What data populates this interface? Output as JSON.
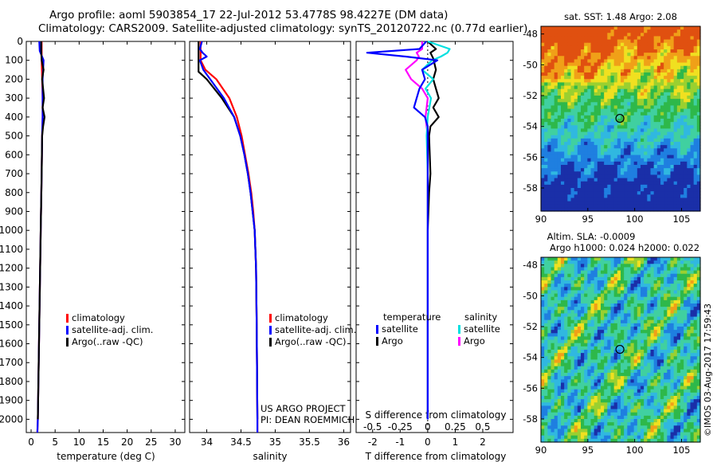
{
  "header": {
    "line1": "Argo profile: aoml 5903854_17 22-Jul-2012 53.4778S 98.4227E (DM data)",
    "line2": "Climatology: CARS2009. Satellite-adjusted climatology: synTS_20120722.nc (0.77d earlier)"
  },
  "project": {
    "line1": "US ARGO PROJECT",
    "line2": "PI: DEAN ROEMMICH"
  },
  "stamp": "©IMOS 03-Aug-2017 17:59:43",
  "colors": {
    "climatology": "#ff0000",
    "satellite": "#0000ff",
    "argo": "#000000",
    "sal_sat": "#00e0e0",
    "sal_argo": "#ff00ff"
  },
  "chart_data": [
    {
      "type": "line",
      "name": "temperature-profile",
      "xlabel": "temperature (deg C)",
      "xlim": [
        -1,
        32
      ],
      "xticks": [
        0,
        5,
        10,
        15,
        20,
        25,
        30
      ],
      "ylim": [
        0,
        2070
      ],
      "yticks": [
        0,
        100,
        200,
        300,
        400,
        500,
        600,
        700,
        800,
        900,
        1000,
        1100,
        1200,
        1300,
        1400,
        1500,
        1600,
        1700,
        1800,
        1900,
        2000
      ],
      "legend": [
        "climatology",
        "satellite-adj. clim.",
        "Argo(..raw -QC)"
      ],
      "series": [
        {
          "name": "climatology",
          "depth": [
            0,
            50,
            100,
            200,
            300,
            400,
            500,
            700,
            1000,
            1500,
            2000,
            2070
          ],
          "values": [
            2.2,
            2.2,
            2.2,
            2.3,
            2.4,
            2.4,
            2.3,
            2.2,
            2.0,
            1.7,
            1.4,
            1.3
          ]
        },
        {
          "name": "satellite-adj. clim.",
          "depth": [
            0,
            50,
            100,
            200,
            300,
            400,
            500,
            700,
            1000,
            1500,
            2000,
            2070
          ],
          "values": [
            1.7,
            1.8,
            2.6,
            2.4,
            2.4,
            2.4,
            2.3,
            2.2,
            2.0,
            1.7,
            1.4,
            1.3
          ]
        },
        {
          "name": "Argo(..raw -QC)",
          "depth": [
            0,
            50,
            100,
            150,
            200,
            250,
            300,
            350,
            400,
            450,
            500,
            700,
            1000,
            1500,
            2000
          ],
          "values": [
            2.1,
            2.1,
            2.2,
            2.6,
            2.3,
            2.5,
            2.7,
            2.4,
            2.8,
            2.5,
            2.3,
            2.2,
            2.0,
            1.7,
            1.4
          ]
        }
      ]
    },
    {
      "type": "line",
      "name": "salinity-profile",
      "xlabel": "salinity",
      "xlim": [
        33.75,
        36.1
      ],
      "xticks": [
        34,
        34.5,
        35,
        35.5,
        36
      ],
      "ylim": [
        0,
        2070
      ],
      "legend": [
        "climatology",
        "satellite-adj. clim.",
        "Argo(..raw -QC)"
      ],
      "series": [
        {
          "name": "climatology",
          "depth": [
            0,
            100,
            150,
            200,
            300,
            400,
            500,
            600,
            700,
            800,
            900,
            1000,
            1200,
            1500,
            2000,
            2070
          ],
          "values": [
            33.91,
            33.91,
            33.98,
            34.14,
            34.33,
            34.44,
            34.51,
            34.56,
            34.61,
            34.65,
            34.68,
            34.7,
            34.72,
            34.73,
            34.74,
            34.74
          ]
        },
        {
          "name": "satellite-adj. clim.",
          "depth": [
            0,
            40,
            60,
            80,
            100,
            150,
            200,
            300,
            400,
            500,
            600,
            700,
            800,
            900,
            1000,
            1200,
            1500,
            2000,
            2070
          ],
          "values": [
            33.93,
            33.9,
            33.94,
            34.0,
            33.9,
            33.95,
            34.05,
            34.25,
            34.4,
            34.49,
            34.55,
            34.6,
            34.64,
            34.67,
            34.7,
            34.72,
            34.73,
            34.74,
            34.74
          ]
        },
        {
          "name": "Argo(..raw -QC)",
          "depth": [
            0,
            160,
            200,
            300,
            400,
            500,
            600,
            700,
            800,
            900,
            1000,
            1200,
            1500,
            2000
          ],
          "values": [
            33.88,
            33.88,
            34.0,
            34.22,
            34.4,
            34.49,
            34.55,
            34.6,
            34.64,
            34.67,
            34.7,
            34.72,
            34.73,
            34.74
          ]
        }
      ]
    },
    {
      "type": "line",
      "name": "difference-profile",
      "xlabel": "T difference from climatology",
      "xlabel2": "S difference from climatology",
      "xlim_T": [
        -2.6,
        3.1
      ],
      "xticks_T": [
        -2,
        -1,
        0,
        1,
        2
      ],
      "xticks_S": [
        -0.5,
        -0.25,
        0,
        0.25,
        0.5
      ],
      "ylim": [
        0,
        2070
      ],
      "legend_temperature_title": "temperature",
      "legend_salinity_title": "salinity",
      "legend_temperature": [
        "satellite",
        "Argo"
      ],
      "legend_salinity": [
        "satellite",
        "Argo"
      ],
      "series": [
        {
          "name": "temperature satellite",
          "depth": [
            0,
            40,
            60,
            80,
            100,
            150,
            200,
            250,
            300,
            350,
            400,
            450,
            500,
            700,
            1000,
            1500,
            2000
          ],
          "values": [
            -0.05,
            -0.3,
            -2.2,
            -0.8,
            0.35,
            -0.2,
            -0.1,
            -0.3,
            -0.4,
            -0.5,
            -0.1,
            0.0,
            0.0,
            0.0,
            0.0,
            0.0,
            0.0
          ]
        },
        {
          "name": "temperature Argo",
          "depth": [
            0,
            40,
            60,
            90,
            150,
            200,
            250,
            300,
            350,
            400,
            450,
            500,
            700,
            800,
            1000,
            1500,
            2000
          ],
          "values": [
            0.0,
            0.3,
            0.1,
            0.2,
            0.3,
            0.2,
            0.3,
            0.4,
            0.2,
            0.4,
            0.1,
            0.05,
            0.1,
            0.05,
            0.0,
            0.0,
            0.0
          ]
        },
        {
          "name": "salinity satellite",
          "depth": [
            0,
            40,
            60,
            80,
            100,
            150,
            200,
            250,
            300,
            400,
            500,
            700,
            1000,
            1500,
            2000
          ],
          "values": [
            0.0,
            0.2,
            0.18,
            0.12,
            0.04,
            -0.05,
            0.05,
            -0.02,
            0.03,
            0.0,
            -0.01,
            0.0,
            0.0,
            0.0,
            0.0
          ]
        },
        {
          "name": "salinity Argo",
          "depth": [
            0,
            40,
            60,
            80,
            100,
            150,
            200,
            250,
            300,
            400,
            500,
            700,
            1000,
            1500,
            2000
          ],
          "values": [
            -0.05,
            -0.05,
            -0.1,
            -0.08,
            -0.1,
            -0.2,
            -0.15,
            -0.05,
            0.0,
            -0.02,
            0.0,
            0.0,
            0.0,
            0.0,
            0.0
          ]
        }
      ]
    },
    {
      "type": "heatmap",
      "name": "sst-map",
      "title": "sat. SST: 1.48 Argo: 2.08",
      "xlim": [
        90,
        107
      ],
      "ylim": [
        -59.5,
        -47.5
      ],
      "xticks": [
        90,
        95,
        100,
        105
      ],
      "yticks": [
        -48,
        -50,
        -52,
        -54,
        -56,
        -58
      ],
      "marker": {
        "lon": 98.4227,
        "lat": -53.4778
      }
    },
    {
      "type": "heatmap",
      "name": "sla-map",
      "title1": "Altim. SLA: -0.0009",
      "title2": "Argo h1000: 0.024 h2000: 0.022",
      "xlim": [
        90,
        107
      ],
      "ylim": [
        -59.5,
        -47.5
      ],
      "xticks": [
        90,
        95,
        100,
        105
      ],
      "yticks": [
        -48,
        -50,
        -52,
        -54,
        -56,
        -58
      ],
      "marker": {
        "lon": 98.4227,
        "lat": -53.4778
      }
    }
  ]
}
